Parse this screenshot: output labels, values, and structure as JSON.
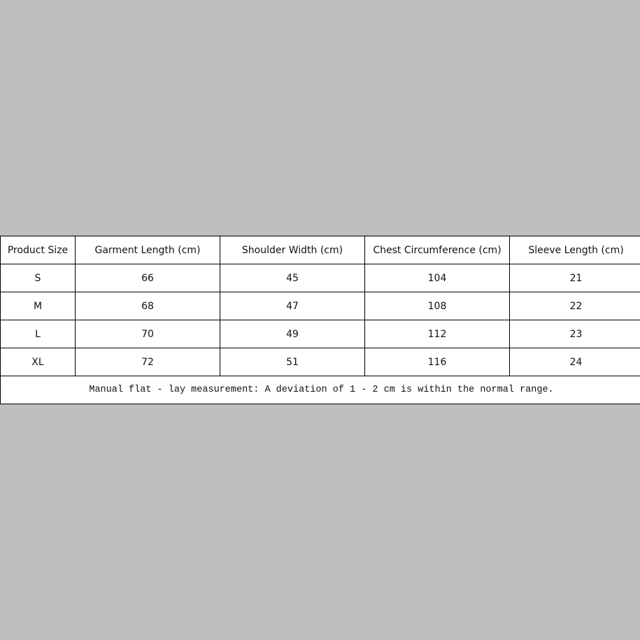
{
  "table": {
    "headers": [
      "Product Size",
      "Garment Length (cm)",
      "Shoulder Width (cm)",
      "Chest Circumference (cm)",
      "Sleeve Length (cm)"
    ],
    "rows": [
      [
        "S",
        "66",
        "45",
        "104",
        "21"
      ],
      [
        "M",
        "68",
        "47",
        "108",
        "22"
      ],
      [
        "L",
        "70",
        "49",
        "112",
        "23"
      ],
      [
        "XL",
        "72",
        "51",
        "116",
        "24"
      ]
    ],
    "note": "Manual flat - lay measurement: A deviation of 1 - 2 cm is within the normal range."
  }
}
